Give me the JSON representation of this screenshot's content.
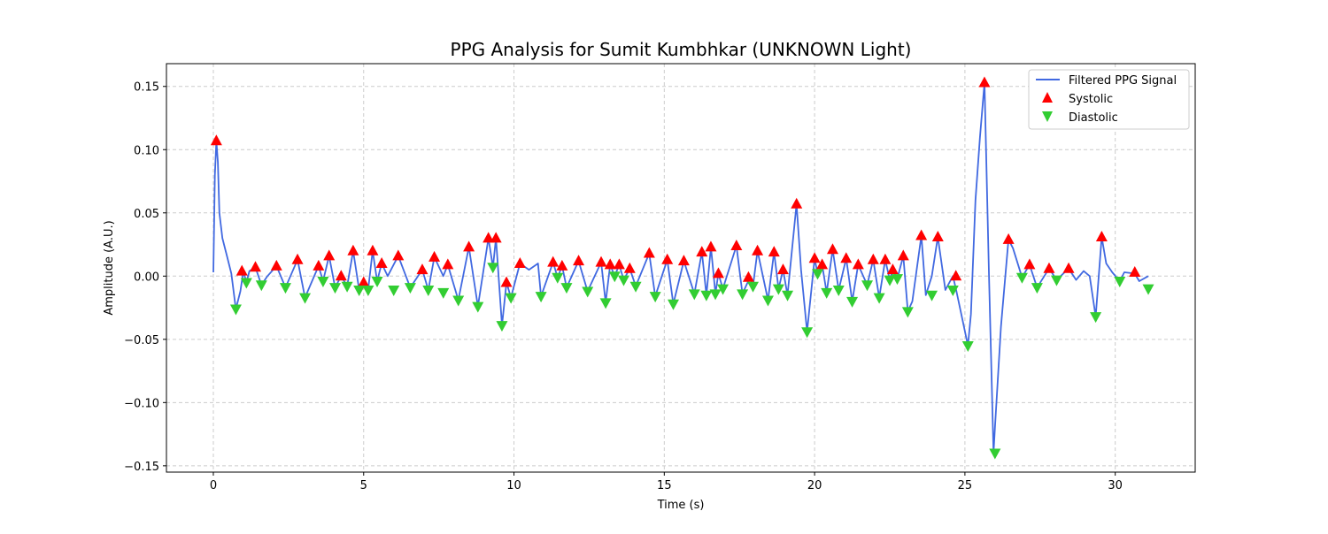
{
  "chart_data": {
    "type": "line",
    "title": "PPG Analysis for Sumit Kumbhkar (UNKNOWN Light)",
    "xlabel": "Time (s)",
    "ylabel": "Amplitude (A.U.)",
    "xlim": [
      -1.56,
      32.66
    ],
    "ylim": [
      -0.155,
      0.168
    ],
    "xticks": [
      0,
      5,
      10,
      15,
      20,
      25,
      30
    ],
    "xtick_labels": [
      "0",
      "5",
      "10",
      "15",
      "20",
      "25",
      "30"
    ],
    "yticks": [
      0.15,
      0.1,
      0.05,
      0.0,
      -0.05,
      -0.1,
      -0.15
    ],
    "ytick_labels": [
      "0.15",
      "0.10",
      "0.05",
      "0.00",
      "−0.05",
      "−0.10",
      "−0.15"
    ],
    "grid": true,
    "legend_position": "top-right",
    "colors": {
      "signal": "#4169e1",
      "systolic": "#ff0000",
      "diastolic": "#32cd32"
    },
    "series": [
      {
        "name": "Filtered PPG Signal",
        "kind": "line",
        "x": [
          0,
          0.05,
          0.1,
          0.15,
          0.2,
          0.3,
          0.45,
          0.6,
          0.75,
          0.9,
          1.0,
          1.1,
          1.2,
          1.4,
          1.6,
          1.8,
          2.1,
          2.4,
          2.8,
          3.05,
          3.5,
          3.65,
          3.85,
          4.05,
          4.25,
          4.45,
          4.65,
          4.85,
          5.0,
          5.15,
          5.3,
          5.45,
          5.6,
          5.8,
          6.15,
          6.55,
          6.95,
          7.15,
          7.35,
          7.65,
          7.8,
          8.15,
          8.5,
          8.8,
          9.15,
          9.3,
          9.4,
          9.6,
          9.75,
          9.9,
          10.2,
          10.5,
          10.8,
          10.9,
          11.3,
          11.45,
          11.6,
          11.75,
          12.15,
          12.45,
          12.9,
          13.05,
          13.2,
          13.35,
          13.5,
          13.65,
          13.85,
          14.05,
          14.5,
          14.7,
          15.1,
          15.3,
          15.65,
          16.0,
          16.25,
          16.4,
          16.55,
          16.7,
          16.8,
          16.95,
          17.4,
          17.6,
          17.85,
          17.95,
          18.1,
          18.45,
          18.65,
          18.8,
          18.95,
          19.1,
          19.4,
          19.55,
          19.75,
          20.0,
          20.1,
          20.25,
          20.4,
          20.6,
          20.8,
          21.05,
          21.25,
          21.45,
          21.75,
          21.95,
          22.15,
          22.35,
          22.5,
          22.6,
          22.75,
          22.95,
          23.1,
          23.25,
          23.55,
          23.7,
          23.9,
          24.1,
          24.35,
          24.6,
          24.7,
          24.95,
          25.1,
          25.2,
          25.35,
          25.5,
          25.65,
          25.8,
          25.95,
          26.0,
          26.2,
          26.45,
          26.6,
          26.9,
          27.15,
          27.4,
          27.8,
          28.05,
          28.45,
          28.7,
          28.95,
          29.15,
          29.35,
          29.55,
          29.7,
          29.9,
          30.15,
          30.3,
          30.65,
          30.8,
          31.1
        ],
        "y": [
          0.003,
          0.08,
          0.107,
          0.09,
          0.05,
          0.03,
          0.016,
          0.002,
          -0.026,
          -0.012,
          0.004,
          -0.005,
          0.004,
          0.007,
          -0.007,
          0.0,
          0.008,
          -0.009,
          0.013,
          -0.017,
          0.008,
          -0.004,
          0.016,
          -0.009,
          0.0,
          -0.008,
          0.02,
          -0.011,
          -0.005,
          -0.011,
          0.02,
          -0.004,
          0.01,
          0.0,
          0.016,
          -0.009,
          0.005,
          -0.011,
          0.015,
          0.0,
          0.009,
          -0.019,
          0.023,
          -0.024,
          0.03,
          0.007,
          0.03,
          -0.039,
          -0.005,
          -0.017,
          0.01,
          0.005,
          0.01,
          -0.016,
          0.011,
          -0.001,
          0.008,
          -0.009,
          0.012,
          -0.012,
          0.011,
          -0.021,
          0.009,
          0.0,
          0.009,
          -0.003,
          0.006,
          -0.008,
          0.018,
          -0.016,
          0.013,
          -0.022,
          0.012,
          -0.014,
          0.019,
          -0.015,
          0.023,
          -0.014,
          0.002,
          -0.01,
          0.024,
          -0.014,
          -0.001,
          -0.008,
          0.02,
          -0.019,
          0.019,
          -0.01,
          0.005,
          -0.015,
          0.057,
          0.005,
          -0.044,
          0.014,
          0.002,
          0.009,
          -0.013,
          0.021,
          -0.011,
          0.014,
          -0.02,
          0.009,
          -0.007,
          0.013,
          -0.017,
          0.013,
          -0.003,
          0.005,
          -0.002,
          0.016,
          -0.028,
          -0.02,
          0.032,
          -0.015,
          0.0,
          0.031,
          -0.011,
          0.0,
          -0.01,
          -0.038,
          -0.055,
          -0.03,
          0.06,
          0.11,
          0.153,
          0.0,
          -0.14,
          -0.12,
          -0.04,
          0.029,
          0.022,
          -0.001,
          0.009,
          -0.009,
          0.006,
          -0.003,
          0.006,
          -0.003,
          0.004,
          0.0,
          -0.032,
          0.031,
          0.01,
          0.003,
          -0.004,
          0.003,
          0.002,
          -0.004,
          0.0
        ]
      },
      {
        "name": "Systolic",
        "kind": "markers",
        "x": [
          0.1,
          0.95,
          1.4,
          2.1,
          2.8,
          3.5,
          3.85,
          4.25,
          4.65,
          5.0,
          5.3,
          5.6,
          6.15,
          6.95,
          7.35,
          7.8,
          8.5,
          9.15,
          9.4,
          9.75,
          10.2,
          11.3,
          11.6,
          12.15,
          12.9,
          13.2,
          13.5,
          13.85,
          14.5,
          15.1,
          15.65,
          16.25,
          16.55,
          16.8,
          17.4,
          17.8,
          18.1,
          18.65,
          18.95,
          19.4,
          20.0,
          20.25,
          20.6,
          21.05,
          21.45,
          21.95,
          22.35,
          22.6,
          22.95,
          23.55,
          24.1,
          24.7,
          25.65,
          26.45,
          27.15,
          27.8,
          28.45,
          29.55,
          30.65
        ],
        "y": [
          0.107,
          0.004,
          0.007,
          0.008,
          0.013,
          0.008,
          0.016,
          0.0,
          0.02,
          -0.005,
          0.02,
          0.01,
          0.016,
          0.005,
          0.015,
          0.009,
          0.023,
          0.03,
          0.03,
          -0.005,
          0.01,
          0.011,
          0.008,
          0.012,
          0.011,
          0.009,
          0.009,
          0.006,
          0.018,
          0.013,
          0.012,
          0.019,
          0.023,
          0.002,
          0.024,
          -0.001,
          0.02,
          0.019,
          0.005,
          0.057,
          0.014,
          0.009,
          0.021,
          0.014,
          0.009,
          0.013,
          0.013,
          0.005,
          0.016,
          0.032,
          0.031,
          0.0,
          0.153,
          0.029,
          0.009,
          0.006,
          0.006,
          0.031,
          0.003
        ]
      },
      {
        "name": "Diastolic",
        "kind": "markers",
        "x": [
          0.75,
          1.1,
          1.6,
          2.4,
          3.05,
          3.65,
          4.05,
          4.45,
          4.85,
          5.15,
          5.45,
          6.0,
          6.55,
          7.15,
          7.65,
          8.15,
          8.8,
          9.3,
          9.6,
          9.9,
          10.9,
          11.45,
          11.75,
          12.45,
          13.05,
          13.35,
          13.65,
          14.05,
          14.7,
          15.3,
          16.0,
          16.4,
          16.7,
          16.95,
          17.6,
          17.95,
          18.45,
          18.8,
          19.1,
          19.75,
          20.1,
          20.4,
          20.8,
          21.25,
          21.75,
          22.15,
          22.5,
          22.75,
          23.1,
          23.9,
          24.6,
          25.1,
          26.0,
          26.9,
          27.4,
          28.05,
          29.35,
          30.15,
          31.1
        ],
        "y": [
          -0.026,
          -0.005,
          -0.007,
          -0.009,
          -0.017,
          -0.004,
          -0.009,
          -0.008,
          -0.011,
          -0.011,
          -0.004,
          -0.011,
          -0.009,
          -0.011,
          -0.013,
          -0.019,
          -0.024,
          0.007,
          -0.039,
          -0.017,
          -0.016,
          -0.001,
          -0.009,
          -0.012,
          -0.021,
          0.0,
          -0.003,
          -0.008,
          -0.016,
          -0.022,
          -0.014,
          -0.015,
          -0.014,
          -0.01,
          -0.014,
          -0.008,
          -0.019,
          -0.01,
          -0.015,
          -0.044,
          0.002,
          -0.013,
          -0.011,
          -0.02,
          -0.007,
          -0.017,
          -0.003,
          -0.002,
          -0.028,
          -0.015,
          -0.011,
          -0.055,
          -0.14,
          -0.001,
          -0.009,
          -0.003,
          -0.032,
          -0.004,
          -0.01
        ]
      }
    ]
  }
}
